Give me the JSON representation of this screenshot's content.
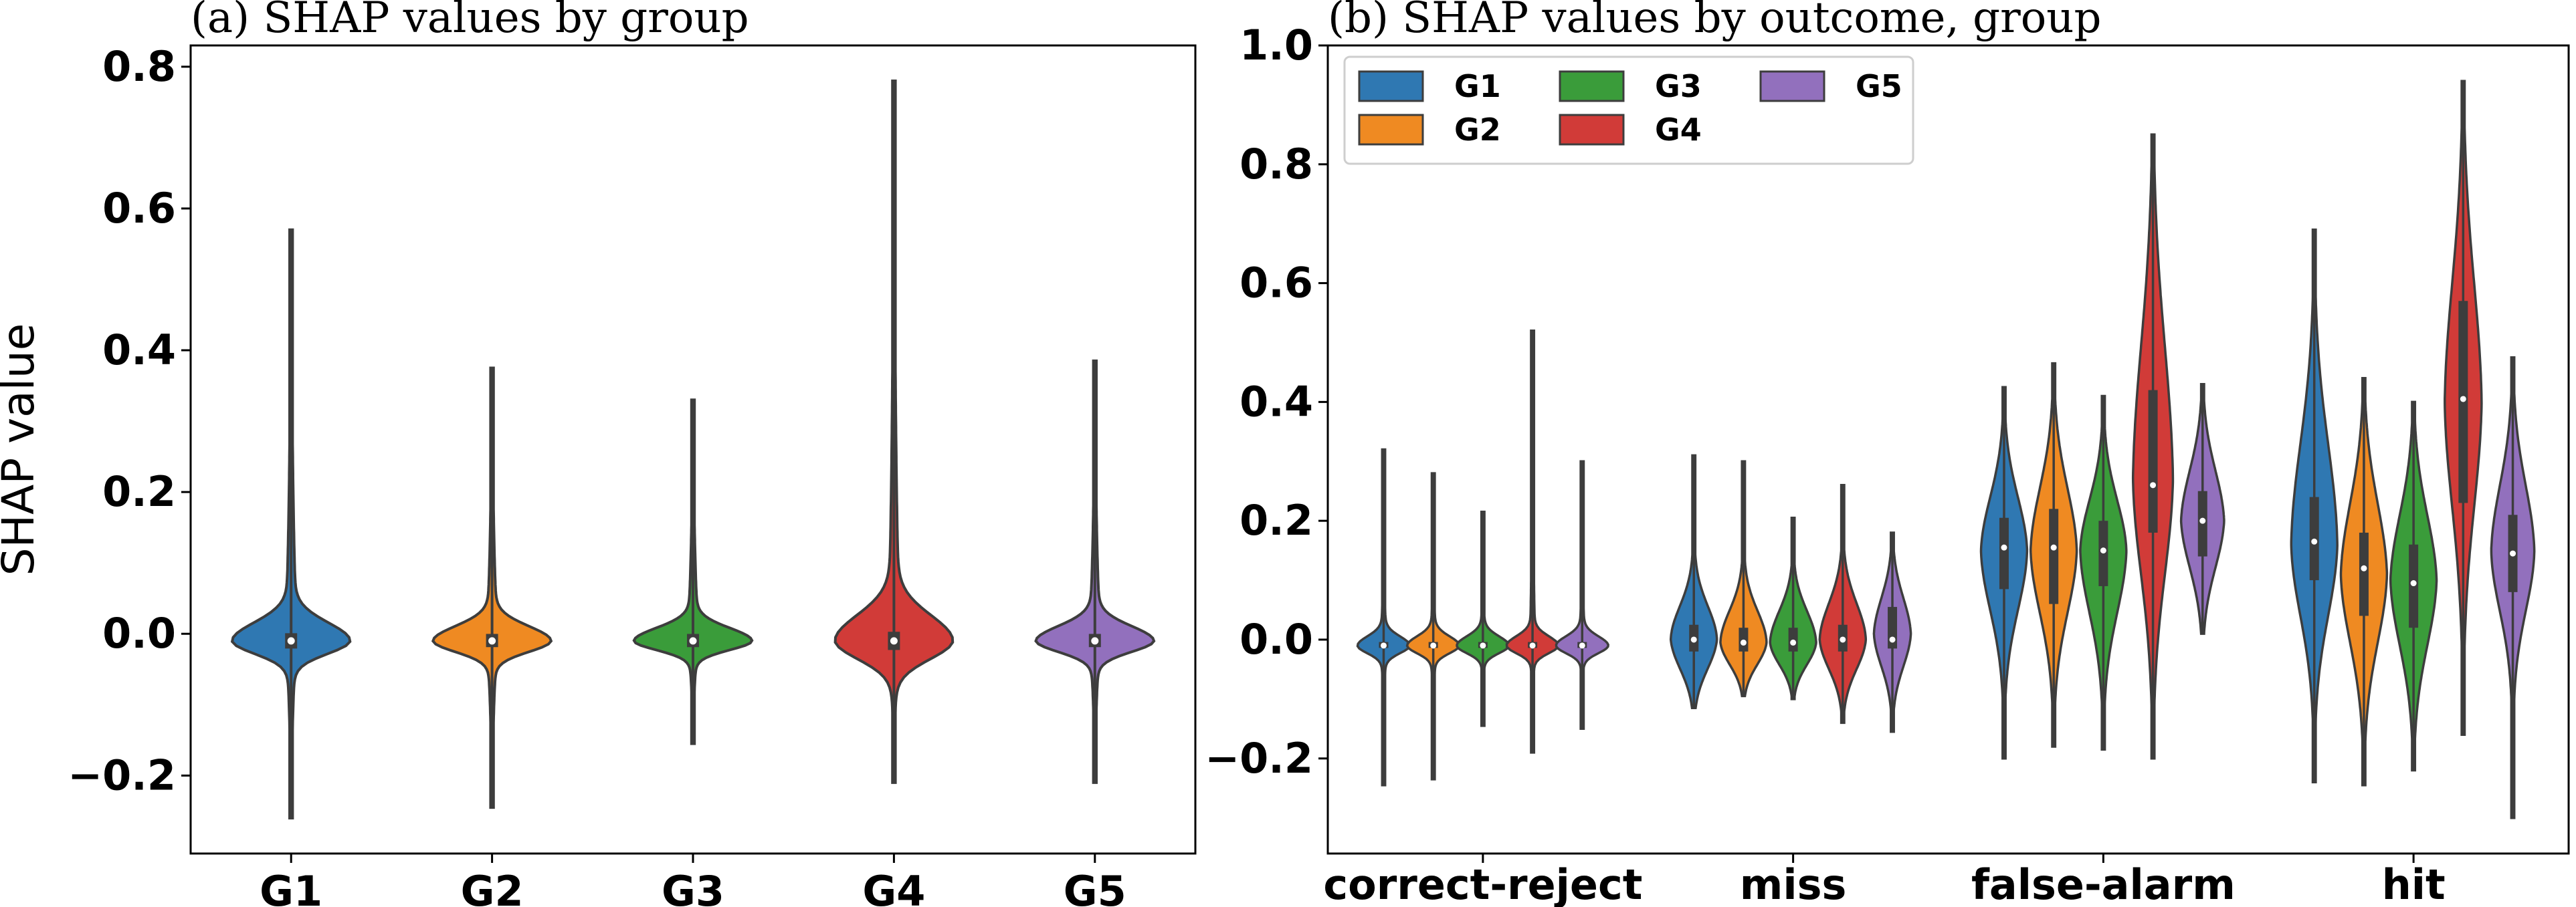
{
  "colors": {
    "G1": "#2f78b2",
    "G2": "#ef8a22",
    "G3": "#3a9c3a",
    "G4": "#d13b38",
    "G5": "#9270bd",
    "edge": "#3d3d3d"
  },
  "chart_data": [
    {
      "type": "violin",
      "title": "(a) SHAP values by group",
      "ylabel": "SHAP value",
      "ylim": [
        -0.31,
        0.83
      ],
      "yticks": [
        "−0.2",
        "0.0",
        "0.2",
        "0.4",
        "0.6",
        "0.8"
      ],
      "ytick_values": [
        -0.2,
        0.0,
        0.2,
        0.4,
        0.6,
        0.8
      ],
      "categories": [
        "G1",
        "G2",
        "G3",
        "G4",
        "G5"
      ],
      "violins": [
        {
          "group": "G1",
          "min": -0.26,
          "max": 0.57,
          "median": -0.01,
          "q1": -0.018,
          "q3": -0.002,
          "mode": -0.01,
          "body_upper": 0.04,
          "body_lower": -0.045,
          "peak_halfwidth": 0.12
        },
        {
          "group": "G2",
          "min": -0.245,
          "max": 0.375,
          "median": -0.01,
          "q1": -0.016,
          "q3": -0.003,
          "mode": -0.01,
          "body_upper": 0.03,
          "body_lower": -0.04,
          "peak_halfwidth": 0.12
        },
        {
          "group": "G3",
          "min": -0.155,
          "max": 0.33,
          "median": -0.01,
          "q1": -0.016,
          "q3": -0.003,
          "mode": -0.01,
          "body_upper": 0.025,
          "body_lower": -0.035,
          "peak_halfwidth": 0.12
        },
        {
          "group": "G4",
          "min": -0.21,
          "max": 0.78,
          "median": -0.01,
          "q1": -0.02,
          "q3": 0.0,
          "mode": -0.01,
          "body_upper": 0.06,
          "body_lower": -0.06,
          "peak_halfwidth": 0.12
        },
        {
          "group": "G5",
          "min": -0.21,
          "max": 0.385,
          "median": -0.01,
          "q1": -0.016,
          "q3": -0.003,
          "mode": -0.01,
          "body_upper": 0.03,
          "body_lower": -0.04,
          "peak_halfwidth": 0.12
        }
      ]
    },
    {
      "type": "violin",
      "title": "(b) SHAP values by outcome, group",
      "ylabel": "",
      "ylim": [
        -0.36,
        1.0
      ],
      "yticks": [
        "−0.2",
        "0.0",
        "0.2",
        "0.4",
        "0.6",
        "0.8",
        "1.0"
      ],
      "ytick_values": [
        -0.2,
        0.0,
        0.2,
        0.4,
        0.6,
        0.8,
        1.0
      ],
      "categories": [
        "correct-reject",
        "miss",
        "false-alarm",
        "hit"
      ],
      "legend": {
        "position": "upper-left",
        "columns": 3,
        "entries": [
          "G1",
          "G2",
          "G3",
          "G4",
          "G5"
        ]
      },
      "violins": [
        {
          "category": "correct-reject",
          "group": "G1",
          "min": -0.245,
          "max": 0.32,
          "median": -0.01,
          "q1": -0.014,
          "q3": -0.004,
          "mode": -0.01,
          "body_upper": 0.02,
          "body_lower": -0.035,
          "peak_halfwidth": 0.085
        },
        {
          "category": "correct-reject",
          "group": "G2",
          "min": -0.235,
          "max": 0.28,
          "median": -0.01,
          "q1": -0.014,
          "q3": -0.004,
          "mode": -0.01,
          "body_upper": 0.02,
          "body_lower": -0.035,
          "peak_halfwidth": 0.085
        },
        {
          "category": "correct-reject",
          "group": "G3",
          "min": -0.145,
          "max": 0.215,
          "median": -0.01,
          "q1": -0.014,
          "q3": -0.004,
          "mode": -0.01,
          "body_upper": 0.02,
          "body_lower": -0.035,
          "peak_halfwidth": 0.085
        },
        {
          "category": "correct-reject",
          "group": "G4",
          "min": -0.19,
          "max": 0.52,
          "median": -0.01,
          "q1": -0.014,
          "q3": -0.004,
          "mode": -0.01,
          "body_upper": 0.02,
          "body_lower": -0.035,
          "peak_halfwidth": 0.085
        },
        {
          "category": "correct-reject",
          "group": "G5",
          "min": -0.15,
          "max": 0.3,
          "median": -0.01,
          "q1": -0.014,
          "q3": -0.004,
          "mode": -0.01,
          "body_upper": 0.02,
          "body_lower": -0.035,
          "peak_halfwidth": 0.085
        },
        {
          "category": "miss",
          "group": "G1",
          "min": -0.115,
          "max": 0.31,
          "median": 0.0,
          "q1": -0.02,
          "q3": 0.025,
          "mode": 0.0,
          "body_upper": 0.11,
          "body_lower": -0.1,
          "peak_halfwidth": 0.075
        },
        {
          "category": "miss",
          "group": "G2",
          "min": -0.095,
          "max": 0.3,
          "median": -0.005,
          "q1": -0.02,
          "q3": 0.02,
          "mode": -0.005,
          "body_upper": 0.1,
          "body_lower": -0.08,
          "peak_halfwidth": 0.075
        },
        {
          "category": "miss",
          "group": "G3",
          "min": -0.1,
          "max": 0.205,
          "median": -0.005,
          "q1": -0.02,
          "q3": 0.02,
          "mode": -0.005,
          "body_upper": 0.1,
          "body_lower": -0.08,
          "peak_halfwidth": 0.075
        },
        {
          "category": "miss",
          "group": "G4",
          "min": -0.14,
          "max": 0.26,
          "median": 0.0,
          "q1": -0.02,
          "q3": 0.025,
          "mode": 0.0,
          "body_upper": 0.12,
          "body_lower": -0.1,
          "peak_halfwidth": 0.075
        },
        {
          "category": "miss",
          "group": "G5",
          "min": -0.155,
          "max": 0.18,
          "median": 0.0,
          "q1": -0.015,
          "q3": 0.055,
          "mode": 0.01,
          "body_upper": 0.13,
          "body_lower": -0.1,
          "peak_halfwidth": 0.06
        },
        {
          "category": "false-alarm",
          "group": "G1",
          "min": -0.2,
          "max": 0.425,
          "median": 0.155,
          "q1": 0.085,
          "q3": 0.205,
          "mode": 0.15,
          "body_upper": 0.33,
          "body_lower": -0.05,
          "peak_halfwidth": 0.075
        },
        {
          "category": "false-alarm",
          "group": "G2",
          "min": -0.18,
          "max": 0.465,
          "median": 0.155,
          "q1": 0.06,
          "q3": 0.22,
          "mode": 0.15,
          "body_upper": 0.36,
          "body_lower": -0.06,
          "peak_halfwidth": 0.075
        },
        {
          "category": "false-alarm",
          "group": "G3",
          "min": -0.185,
          "max": 0.41,
          "median": 0.15,
          "q1": 0.09,
          "q3": 0.2,
          "mode": 0.15,
          "body_upper": 0.32,
          "body_lower": -0.06,
          "peak_halfwidth": 0.075
        },
        {
          "category": "false-alarm",
          "group": "G4",
          "min": -0.2,
          "max": 0.85,
          "median": 0.26,
          "q1": 0.18,
          "q3": 0.42,
          "mode": 0.27,
          "body_upper": 0.72,
          "body_lower": -0.05,
          "peak_halfwidth": 0.065
        },
        {
          "category": "false-alarm",
          "group": "G5",
          "min": 0.01,
          "max": 0.43,
          "median": 0.2,
          "q1": 0.14,
          "q3": 0.25,
          "mode": 0.2,
          "body_upper": 0.37,
          "body_lower": 0.04,
          "peak_halfwidth": 0.07
        },
        {
          "category": "hit",
          "group": "G1",
          "min": -0.24,
          "max": 0.69,
          "median": 0.165,
          "q1": 0.1,
          "q3": 0.24,
          "mode": 0.16,
          "body_upper": 0.5,
          "body_lower": -0.08,
          "peak_halfwidth": 0.075
        },
        {
          "category": "hit",
          "group": "G2",
          "min": -0.245,
          "max": 0.44,
          "median": 0.12,
          "q1": 0.04,
          "q3": 0.18,
          "mode": 0.11,
          "body_upper": 0.35,
          "body_lower": -0.12,
          "peak_halfwidth": 0.075
        },
        {
          "category": "hit",
          "group": "G3",
          "min": -0.22,
          "max": 0.4,
          "median": 0.095,
          "q1": 0.02,
          "q3": 0.16,
          "mode": 0.1,
          "body_upper": 0.32,
          "body_lower": -0.12,
          "peak_halfwidth": 0.075
        },
        {
          "category": "hit",
          "group": "G4",
          "min": -0.16,
          "max": 0.94,
          "median": 0.405,
          "q1": 0.23,
          "q3": 0.57,
          "mode": 0.4,
          "body_upper": 0.8,
          "body_lower": 0.05,
          "peak_halfwidth": 0.06
        },
        {
          "category": "hit",
          "group": "G5",
          "min": -0.3,
          "max": 0.475,
          "median": 0.145,
          "q1": 0.08,
          "q3": 0.21,
          "mode": 0.15,
          "body_upper": 0.37,
          "body_lower": -0.05,
          "peak_halfwidth": 0.07
        }
      ]
    }
  ]
}
